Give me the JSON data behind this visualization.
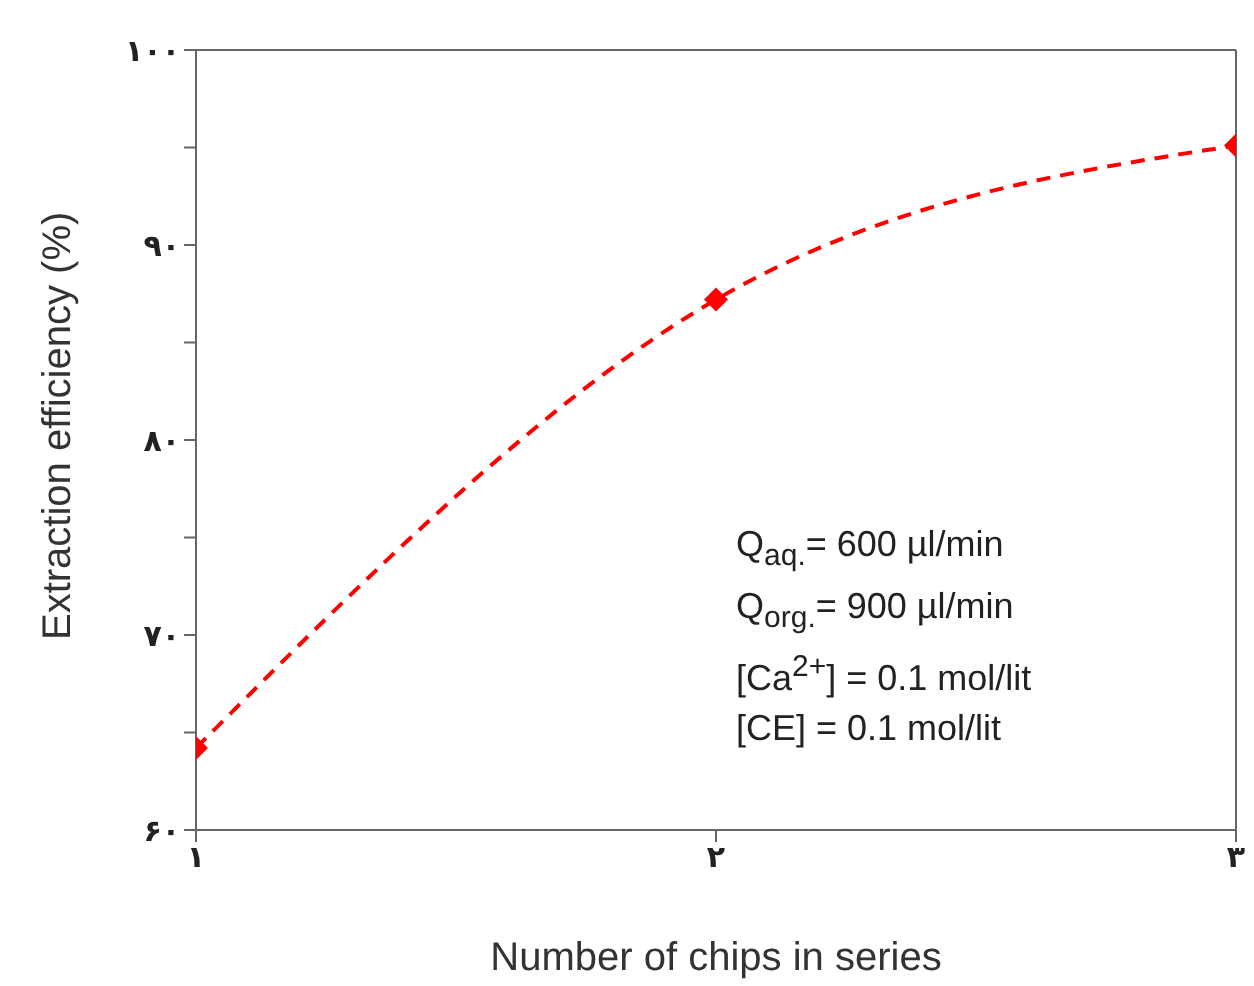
{
  "chart_data": {
    "type": "line",
    "xlabel": "Number of chips in series",
    "ylabel": "Extraction efficiency (%)",
    "x": [
      1,
      2,
      3
    ],
    "series": [
      {
        "color": "#ff0000",
        "values": [
          64.2,
          87.2,
          95.1
        ]
      }
    ],
    "xlim": [
      1,
      3
    ],
    "xticks": [
      {
        "value": 1,
        "label": "۱"
      },
      {
        "value": 2,
        "label": "۲"
      },
      {
        "value": 3,
        "label": "۳"
      }
    ],
    "ylim": [
      60,
      100
    ],
    "yticks": [
      {
        "value": 60,
        "label": "۶۰"
      },
      {
        "value": 65,
        "label": null
      },
      {
        "value": 70,
        "label": "۷۰"
      },
      {
        "value": 75,
        "label": null
      },
      {
        "value": 80,
        "label": "۸۰"
      },
      {
        "value": 85,
        "label": null
      },
      {
        "value": 90,
        "label": "۹۰"
      },
      {
        "value": 95,
        "label": null
      },
      {
        "value": 100,
        "label": "۱۰۰"
      }
    ],
    "marker": "diamond",
    "line_style": "dashed",
    "grid": false,
    "legend": false,
    "annotations": [
      "Q$_{aq.}$= 600 µl/min",
      "Q$_{org.}$= 900 µl/min",
      "[Ca$^{2+}$] = 0.1 mol/lit",
      "[CE] = 0.1 mol/lit"
    ]
  }
}
